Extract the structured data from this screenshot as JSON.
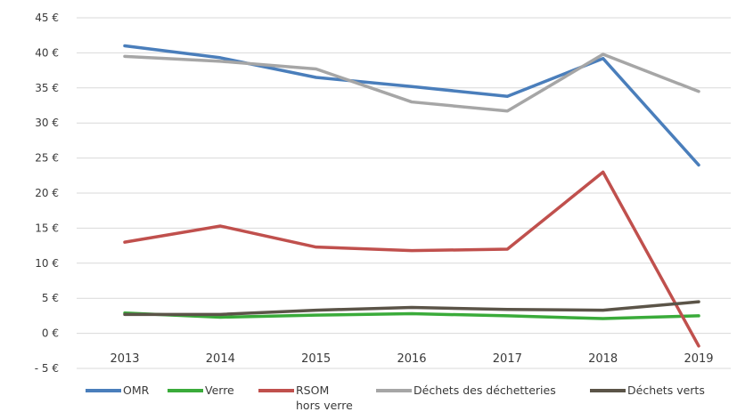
{
  "chart_data": {
    "type": "line",
    "title": "",
    "xlabel": "",
    "ylabel": "",
    "categories": [
      "2013",
      "2014",
      "2015",
      "2016",
      "2017",
      "2018",
      "2019"
    ],
    "ylim": [
      -5,
      45
    ],
    "yticks": [
      45,
      40,
      35,
      30,
      25,
      20,
      15,
      10,
      5,
      0,
      -5
    ],
    "ytick_labels": [
      "45 €",
      "40 €",
      "35 €",
      "30 €",
      "25 €",
      "20 €",
      "15 €",
      "10 €",
      "5 €",
      "0 €",
      "- 5 €"
    ],
    "grid": true,
    "legend_position": "bottom",
    "series": [
      {
        "name": "OMR",
        "color": "#4a7ebb",
        "values": [
          41.0,
          39.3,
          36.5,
          35.2,
          33.8,
          39.2,
          24.0
        ]
      },
      {
        "name": "Verre",
        "color": "#3aab3a",
        "values": [
          2.9,
          2.3,
          2.6,
          2.8,
          2.5,
          2.1,
          2.5
        ]
      },
      {
        "name": "RSOM\nhors verre",
        "color": "#c0504d",
        "values": [
          13.0,
          15.3,
          12.3,
          11.8,
          12.0,
          23.0,
          -1.8
        ]
      },
      {
        "name": "Déchets des déchetteries",
        "color": "#a6a6a6",
        "values": [
          39.5,
          38.8,
          37.7,
          33.0,
          31.7,
          39.8,
          34.5
        ]
      },
      {
        "name": "Déchets verts",
        "color": "#5b5448",
        "values": [
          2.7,
          2.7,
          3.3,
          3.7,
          3.4,
          3.3,
          4.5
        ]
      }
    ]
  }
}
